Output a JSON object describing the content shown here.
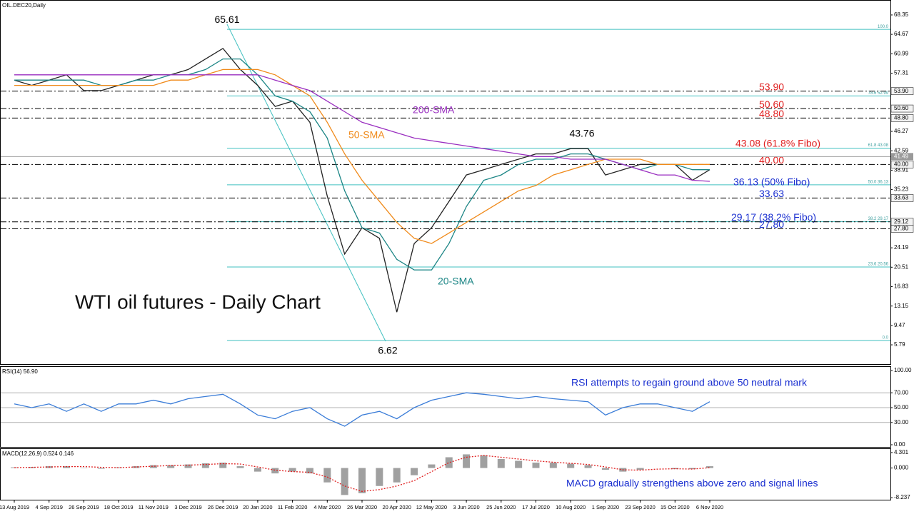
{
  "chart_data": [
    {
      "type": "line",
      "title": "OIL.DEC20,Daily",
      "subtitle": "WTI oil futures - Daily Chart",
      "ylim": [
        2.14,
        71.05
      ],
      "yticks": [
        68.35,
        64.67,
        60.99,
        57.31,
        46.27,
        42.59,
        38.91,
        35.23,
        24.19,
        20.51,
        16.83,
        13.15,
        9.47,
        5.79
      ],
      "last_price": 41.49,
      "peaks": [
        65.61,
        43.76,
        6.62
      ],
      "levels": [
        {
          "value": 53.9,
          "label": "53.90",
          "color": "#e02020"
        },
        {
          "value": 50.6,
          "label": "50.60",
          "color": "#e02020"
        },
        {
          "value": 48.8,
          "label": "48.80",
          "color": "#e02020"
        },
        {
          "value": 40.0,
          "label": "40.00",
          "color": "#e02020"
        },
        {
          "value": 33.63,
          "label": "33.63",
          "color": "#1a2fd0"
        },
        {
          "value": 29.12,
          "label": "29.12"
        },
        {
          "value": 27.8,
          "label": "27.80",
          "color": "#1a2fd0"
        }
      ],
      "fibo": [
        {
          "value": 65.61,
          "label": "100.0"
        },
        {
          "value": 52.99,
          "label": "78.6 52.99"
        },
        {
          "value": 43.08,
          "label": "61.8 43.08",
          "annotation": "43.08 (61.8% Fibo)",
          "annotation_color": "#e02020"
        },
        {
          "value": 36.13,
          "label": "50.0 36.13",
          "annotation": "36.13 (50% Fibo)",
          "annotation_color": "#1a2fd0"
        },
        {
          "value": 29.17,
          "label": "38.2 29.17",
          "annotation": "29.17 (38.2% Fibo)",
          "annotation_color": "#1a2fd0"
        },
        {
          "value": 20.56,
          "label": "23.6 20.56"
        },
        {
          "value": 6.62,
          "label": "0.0"
        }
      ],
      "series": [
        {
          "name": "Price",
          "color": "#222222",
          "values": [
            56,
            55,
            56,
            57,
            54,
            54,
            55,
            56,
            57,
            57,
            58,
            60,
            62,
            58,
            55,
            51,
            52,
            48,
            34,
            23,
            28,
            26,
            12,
            25,
            28,
            33,
            38,
            39,
            40,
            41,
            42,
            42,
            43,
            43,
            38,
            39,
            40,
            40,
            40,
            37,
            39
          ]
        },
        {
          "name": "20-SMA",
          "color": "#1b8585",
          "values": [
            56,
            56,
            56,
            56,
            56,
            55,
            55,
            56,
            56,
            57,
            57,
            58,
            60,
            60,
            57,
            53,
            52,
            50,
            45,
            35,
            28,
            27,
            22,
            20,
            20,
            25,
            32,
            37,
            38,
            40,
            41,
            41,
            42,
            42,
            41,
            40,
            39,
            40,
            40,
            39,
            39
          ]
        },
        {
          "name": "50-SMA",
          "color": "#f08a1a",
          "values": [
            55,
            55,
            55,
            55,
            55,
            55,
            55,
            55,
            55,
            56,
            56,
            57,
            58,
            58,
            58,
            57,
            55,
            53,
            48,
            42,
            37,
            33,
            29,
            26,
            25,
            27,
            29,
            31,
            33,
            35,
            36,
            38,
            39,
            40,
            41,
            41,
            41,
            40,
            40,
            40,
            40
          ]
        },
        {
          "name": "200-SMA",
          "color": "#9a2fc0",
          "values": [
            57,
            57,
            57,
            57,
            57,
            57,
            57,
            57,
            57,
            57,
            57,
            57,
            57,
            57,
            57,
            56,
            55,
            54,
            52,
            50,
            48,
            47,
            46,
            45,
            44.5,
            44,
            43.5,
            43,
            42.5,
            42,
            41.5,
            41.5,
            41,
            41,
            41,
            40,
            39,
            38,
            38,
            37,
            36.8
          ]
        }
      ]
    },
    {
      "type": "line",
      "title": "RSI(14) 56.90",
      "annotation": "RSI attempts to regain ground above 50 neutral mark",
      "ylim": [
        -2.9,
        104.8
      ],
      "yticks": [
        {
          "value": 100,
          "label": "100.00"
        },
        {
          "value": 70,
          "label": "70.00"
        },
        {
          "value": 50,
          "label": "50.00"
        },
        {
          "value": 30,
          "label": "30.00"
        },
        {
          "value": 0,
          "label": "0.00"
        }
      ],
      "series": [
        {
          "name": "RSI",
          "color": "#3b7dd8",
          "values": [
            55,
            50,
            55,
            45,
            55,
            45,
            55,
            55,
            60,
            55,
            62,
            65,
            68,
            55,
            40,
            35,
            45,
            50,
            35,
            25,
            40,
            45,
            35,
            50,
            60,
            65,
            70,
            68,
            65,
            62,
            65,
            62,
            60,
            58,
            40,
            50,
            55,
            55,
            50,
            45,
            58
          ]
        }
      ]
    },
    {
      "type": "macd",
      "title": "MACD(12,26,9) 0.524 0.146",
      "annotation": "MACD gradually strengthens above zero and signal lines",
      "ylim": [
        -8.82,
        5.28
      ],
      "yticks": [
        4.301,
        {
          "value": 0,
          "label": "0.000"
        },
        -8.237
      ],
      "categories": [
        "13 Aug 2019",
        null,
        "4 Sep 2019",
        null,
        "26 Sep 2019",
        null,
        "18 Oct 2019",
        null,
        "11 Nov 2019",
        null,
        "3 Dec 2019",
        null,
        "26 Dec 2019",
        null,
        "20 Jan 2020",
        null,
        "11 Feb 2020",
        null,
        "4 Mar 2020",
        null,
        "26 Mar 2020",
        null,
        "20 Apr 2020",
        null,
        "12 May 2020",
        null,
        "3 Jun 2020",
        null,
        "25 Jun 2020",
        null,
        "17 Jul 2020",
        null,
        "10 Aug 2020",
        null,
        "1 Sep 2020",
        null,
        "23 Sep 2020",
        null,
        "15 Oct 2020",
        null,
        "6 Nov 2020"
      ],
      "histogram": {
        "name": "MACD",
        "color": "#a0a0a0",
        "values": [
          0.2,
          0.3,
          0.5,
          0.5,
          0.1,
          -0.2,
          0.2,
          0.5,
          0.8,
          0.8,
          1.0,
          1.3,
          1.5,
          0.5,
          -1.0,
          -1.5,
          -1.0,
          -1.5,
          -4,
          -7.5,
          -7,
          -5,
          -4,
          -2,
          1,
          3,
          3.8,
          3.5,
          2.5,
          2,
          1.5,
          1.5,
          1.2,
          0.8,
          -0.5,
          -1,
          -0.5,
          0,
          -0.3,
          -0.3,
          0.5
        ]
      },
      "signal": {
        "name": "Signal",
        "color": "#e02020",
        "values": [
          0.1,
          0.2,
          0.3,
          0.4,
          0.4,
          0.2,
          0.1,
          0.3,
          0.5,
          0.7,
          0.8,
          1.0,
          1.2,
          1.1,
          0.3,
          -0.6,
          -1.0,
          -1.2,
          -2.5,
          -5,
          -6.5,
          -6,
          -5,
          -3.5,
          -1,
          1.5,
          3,
          3.5,
          3,
          2.5,
          2,
          1.6,
          1.3,
          1,
          0.3,
          -0.5,
          -0.6,
          -0.3,
          -0.2,
          -0.3,
          0.1
        ]
      }
    }
  ]
}
